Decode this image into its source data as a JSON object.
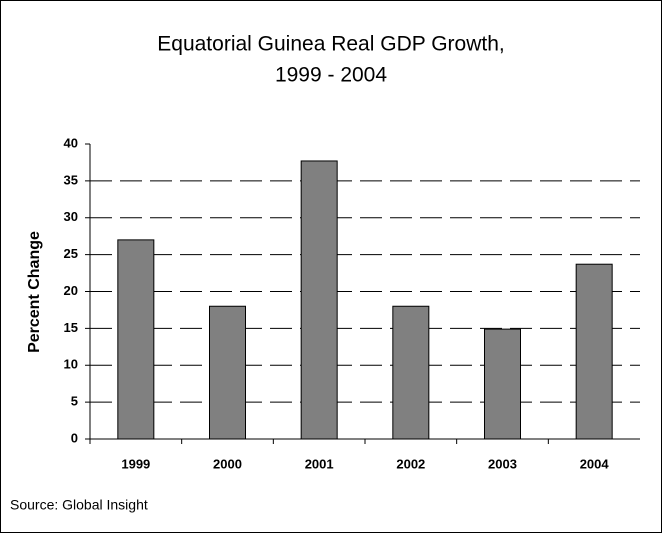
{
  "chart_data": {
    "type": "bar",
    "title": [
      "Equatorial Guinea Real GDP Growth,",
      "1999 - 2004"
    ],
    "y_label": "Percent Change",
    "source": "Source: Global Insight",
    "categories": [
      "1999",
      "2000",
      "2001",
      "2002",
      "2003",
      "2004"
    ],
    "values": [
      27.0,
      18.0,
      37.7,
      18.0,
      14.9,
      23.7
    ],
    "color": "#808080",
    "ylim": [
      0,
      40
    ],
    "yticks": [
      0,
      5,
      10,
      15,
      20,
      25,
      30,
      35,
      40
    ],
    "grid": true
  }
}
